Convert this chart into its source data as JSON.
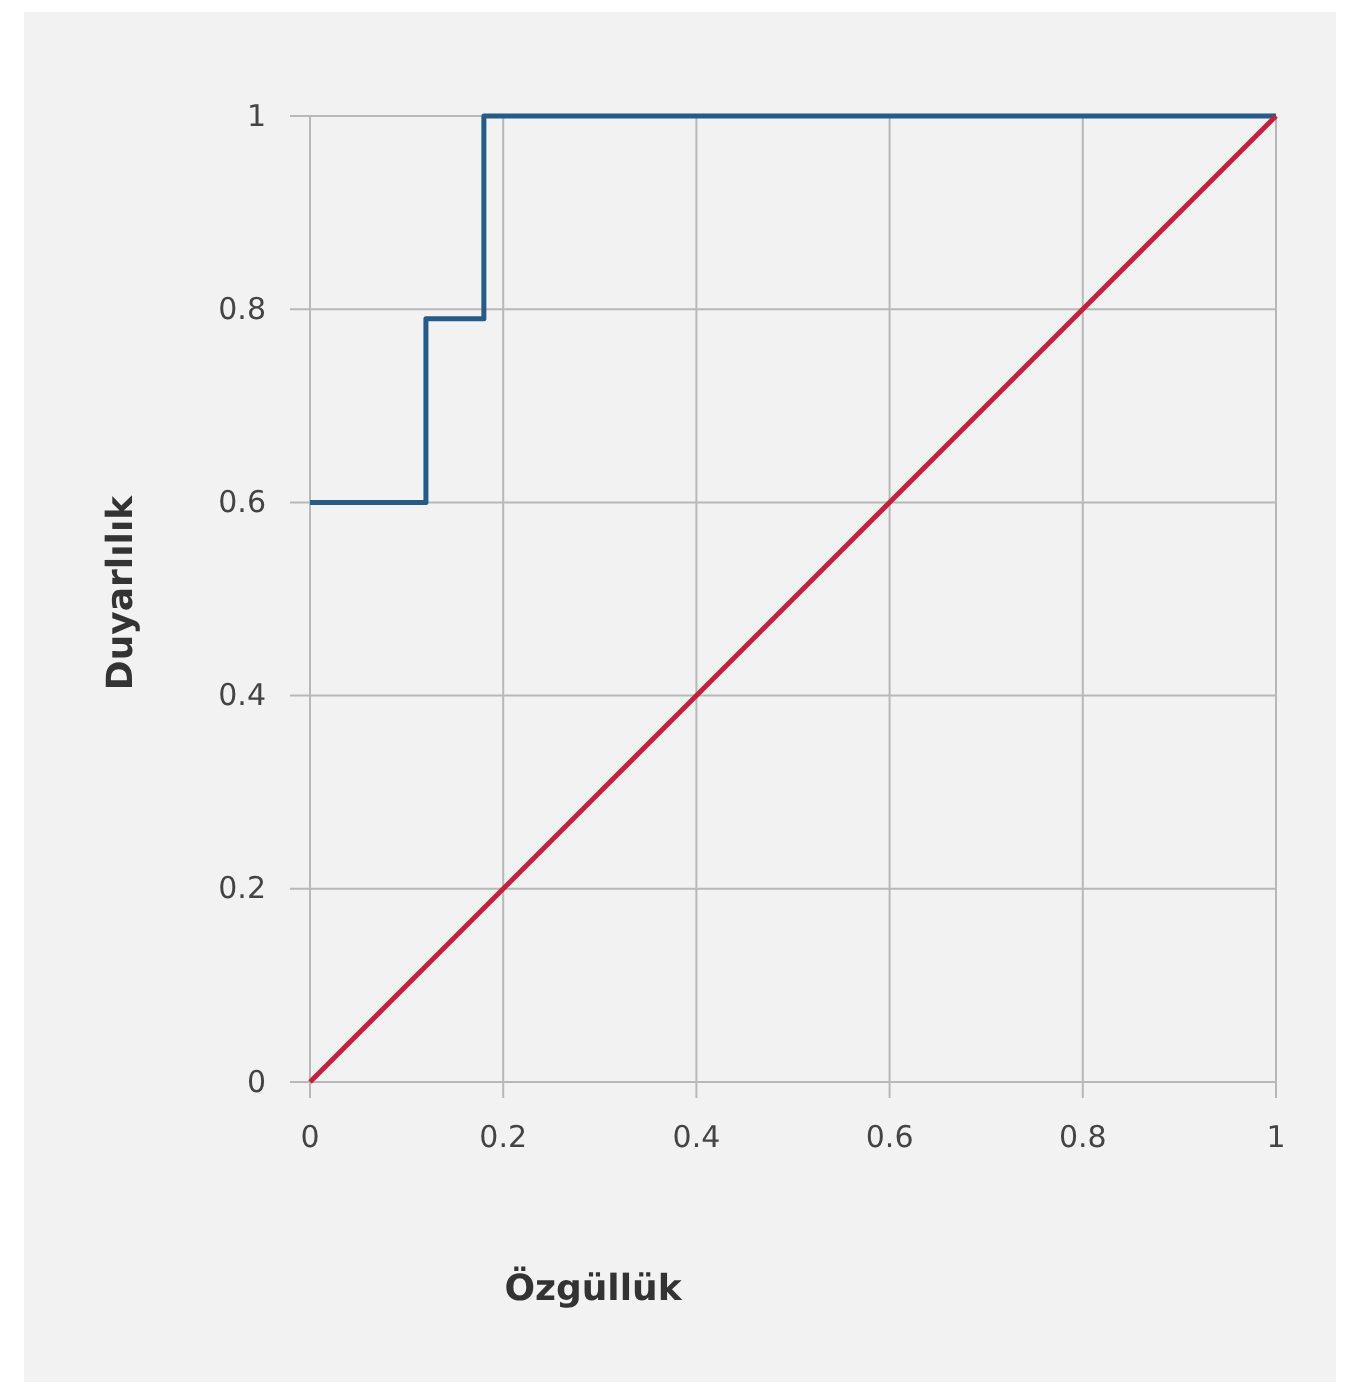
{
  "chart_data": {
    "type": "line",
    "xlabel": "Özgüllük",
    "ylabel": "Duyarlılık",
    "xlim": [
      0,
      1
    ],
    "ylim": [
      0,
      1
    ],
    "xticks": [
      0,
      0.2,
      0.4,
      0.6,
      0.8,
      1
    ],
    "yticks": [
      0,
      0.2,
      0.4,
      0.6,
      0.8,
      1
    ],
    "grid": true,
    "marker": "none",
    "line_style": "solid",
    "series": [
      {
        "color": "#255b86",
        "x": [
          0,
          0.12,
          0.12,
          0.18,
          0.18,
          1
        ],
        "values": [
          0.6,
          0.6,
          0.79,
          0.79,
          1,
          1
        ]
      },
      {
        "color": "#c1223f",
        "x": [
          0,
          1
        ],
        "values": [
          0,
          1
        ]
      }
    ]
  }
}
